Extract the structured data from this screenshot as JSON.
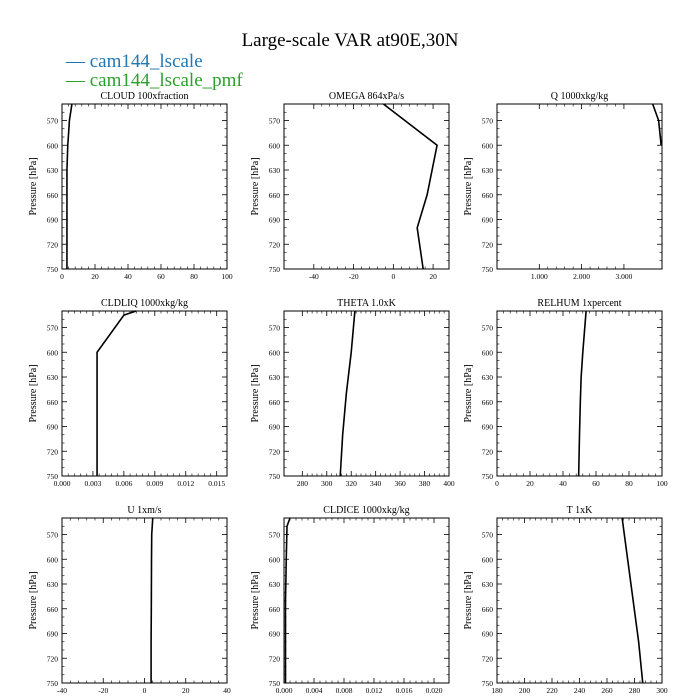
{
  "page": {
    "title": "Large-scale VAR at90E,30N",
    "legend": [
      {
        "label": "cam144_lscale",
        "color": "#1f77b4"
      },
      {
        "label": "cam144_lscale_pmf",
        "color": "#2ca02c"
      }
    ]
  },
  "chart_data": [
    {
      "type": "line",
      "title": "CLOUD  100xfraction",
      "ylabel": "Pressure [hPa]",
      "xlabel": "",
      "xlim": [
        0,
        100
      ],
      "xticks": [
        0,
        20,
        40,
        60,
        80,
        100
      ],
      "xtick_labels": [
        "0",
        "20",
        "40",
        "60",
        "80",
        "100"
      ],
      "ylim": [
        750,
        550
      ],
      "yticks": [
        570,
        600,
        630,
        660,
        690,
        720,
        750
      ],
      "series": [
        {
          "x": [
            6,
            4.5,
            3.5,
            3,
            3,
            3,
            3,
            3
          ],
          "y": [
            550,
            570,
            600,
            630,
            660,
            690,
            720,
            750
          ]
        }
      ]
    },
    {
      "type": "line",
      "title": "OMEGA  864xPa/s",
      "ylabel": "Pressure [hPa]",
      "xlabel": "",
      "xlim": [
        -55,
        28
      ],
      "xticks": [
        -40,
        -20,
        0,
        20
      ],
      "xtick_labels": [
        "-40",
        "-20",
        "0",
        "20"
      ],
      "ylim": [
        750,
        550
      ],
      "yticks": [
        570,
        600,
        630,
        660,
        690,
        720,
        750
      ],
      "series": [
        {
          "x": [
            -5,
            22,
            17,
            12,
            15
          ],
          "y": [
            550,
            600,
            660,
            700,
            750
          ]
        }
      ]
    },
    {
      "type": "line",
      "title": "Q  1000xkg/kg",
      "ylabel": "Pressure [hPa]",
      "xlabel": "",
      "xlim": [
        0,
        3.9
      ],
      "xticks": [
        1,
        2,
        3
      ],
      "xtick_labels": [
        "1.000",
        "2.000",
        "3.000"
      ],
      "ylim": [
        750,
        550
      ],
      "yticks": [
        570,
        600,
        630,
        660,
        690,
        720,
        750
      ],
      "series": [
        {
          "x": [
            3.68,
            3.82,
            3.88
          ],
          "y": [
            550,
            570,
            600
          ]
        }
      ]
    },
    {
      "type": "line",
      "title": "CLDLIQ  1000xkg/kg",
      "ylabel": "Pressure [hPa]",
      "xlabel": "",
      "xlim": [
        0,
        0.016
      ],
      "xticks": [
        0,
        0.003,
        0.006,
        0.009,
        0.012,
        0.015
      ],
      "xtick_labels": [
        "0.000",
        "0.003",
        "0.006",
        "0.009",
        "0.012",
        "0.015"
      ],
      "ylim": [
        750,
        550
      ],
      "yticks": [
        570,
        600,
        630,
        660,
        690,
        720,
        750
      ],
      "series": [
        {
          "x": [
            0.0072,
            0.006,
            0.0034,
            0.0034,
            0.0034
          ],
          "y": [
            550,
            555,
            600,
            650,
            750
          ]
        }
      ]
    },
    {
      "type": "line",
      "title": "THETA  1.0xK",
      "ylabel": "Pressure [hPa]",
      "xlabel": "",
      "xlim": [
        265,
        400
      ],
      "xticks": [
        280,
        300,
        320,
        340,
        360,
        380,
        400
      ],
      "xtick_labels": [
        "280",
        "300",
        "320",
        "340",
        "360",
        "380",
        "400"
      ],
      "ylim": [
        750,
        550
      ],
      "yticks": [
        570,
        600,
        630,
        660,
        690,
        720,
        750
      ],
      "series": [
        {
          "x": [
            323,
            320,
            316,
            313,
            311
          ],
          "y": [
            550,
            600,
            650,
            700,
            750
          ]
        }
      ]
    },
    {
      "type": "line",
      "title": "RELHUM  1xpercent",
      "ylabel": "Pressure [hPa]",
      "xlabel": "",
      "xlim": [
        0,
        100
      ],
      "xticks": [
        0,
        20,
        40,
        60,
        80,
        100
      ],
      "xtick_labels": [
        "0",
        "20",
        "40",
        "60",
        "80",
        "100"
      ],
      "ylim": [
        750,
        550
      ],
      "yticks": [
        570,
        600,
        630,
        660,
        690,
        720,
        750
      ],
      "series": [
        {
          "x": [
            54,
            52,
            51,
            50.5,
            50,
            49.5
          ],
          "y": [
            550,
            600,
            630,
            660,
            700,
            750
          ]
        }
      ]
    },
    {
      "type": "line",
      "title": "U  1xm/s",
      "ylabel": "Pressure [hPa]",
      "xlabel": "",
      "xlim": [
        -40,
        40
      ],
      "xticks": [
        -40,
        -20,
        0,
        20,
        40
      ],
      "xtick_labels": [
        "-40",
        "-20",
        "0",
        "20",
        "40"
      ],
      "ylim": [
        750,
        550
      ],
      "yticks": [
        570,
        600,
        630,
        660,
        690,
        720,
        750
      ],
      "series": [
        {
          "x": [
            4,
            3.5,
            3.4,
            3.3,
            3.2,
            3.2
          ],
          "y": [
            550,
            570,
            600,
            660,
            700,
            750
          ]
        }
      ]
    },
    {
      "type": "line",
      "title": "CLDICE  1000xkg/kg",
      "ylabel": "Pressure [hPa]",
      "xlabel": "",
      "xlim": [
        0,
        0.022
      ],
      "xticks": [
        0,
        0.004,
        0.008,
        0.012,
        0.016,
        0.02
      ],
      "xtick_labels": [
        "0.000",
        "0.004",
        "0.008",
        "0.012",
        "0.016",
        "0.020"
      ],
      "ylim": [
        750,
        550
      ],
      "yticks": [
        570,
        600,
        630,
        660,
        690,
        720,
        750
      ],
      "series": [
        {
          "x": [
            0.0008,
            0.0004,
            0.0003,
            0.0002,
            0.0002,
            0.0002
          ],
          "y": [
            550,
            560,
            600,
            650,
            700,
            750
          ]
        }
      ]
    },
    {
      "type": "line",
      "title": "T  1xK",
      "ylabel": "Pressure [hPa]",
      "xlabel": "",
      "xlim": [
        180,
        300
      ],
      "xticks": [
        180,
        200,
        220,
        240,
        260,
        280,
        300
      ],
      "xtick_labels": [
        "180",
        "200",
        "220",
        "240",
        "260",
        "280",
        "300"
      ],
      "ylim": [
        750,
        550
      ],
      "yticks": [
        570,
        600,
        630,
        660,
        690,
        720,
        750
      ],
      "series": [
        {
          "x": [
            271,
            275,
            279,
            283,
            286
          ],
          "y": [
            550,
            600,
            650,
            700,
            750
          ]
        }
      ]
    }
  ]
}
